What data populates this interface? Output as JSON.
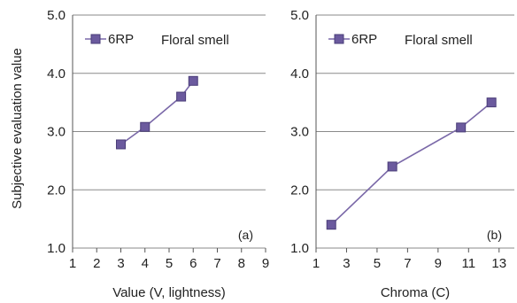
{
  "chart_data": [
    {
      "type": "line",
      "panel_label": "(a)",
      "ylabel": "Subjective evaluation value",
      "xlabel": "Value (V, lightness)",
      "xlim": [
        1,
        9
      ],
      "ylim": [
        1.0,
        5.0
      ],
      "x_ticks": [
        "1",
        "2",
        "3",
        "4",
        "5",
        "6",
        "7",
        "8",
        "9"
      ],
      "y_ticks": [
        "1.0",
        "2.0",
        "3.0",
        "4.0",
        "5.0"
      ],
      "grid": "horizontal",
      "legend_position": "top-left",
      "annotation": "Floral smell",
      "series": [
        {
          "name": "6RP",
          "marker": "square",
          "color": "#7a68a8",
          "x": [
            3,
            4,
            5.5,
            6
          ],
          "y": [
            2.78,
            3.08,
            3.6,
            3.87
          ]
        }
      ]
    },
    {
      "type": "line",
      "panel_label": "(b)",
      "ylabel": "",
      "xlabel": "Chroma (C)",
      "xlim": [
        1,
        14
      ],
      "ylim": [
        1.0,
        5.0
      ],
      "x_ticks": [
        "1",
        "3",
        "5",
        "7",
        "9",
        "11",
        "13"
      ],
      "y_ticks": [
        "1.0",
        "2.0",
        "3.0",
        "4.0",
        "5.0"
      ],
      "grid": "horizontal",
      "legend_position": "top-left",
      "annotation": "Floral smell",
      "series": [
        {
          "name": "6RP",
          "marker": "square",
          "color": "#7a68a8",
          "x": [
            2,
            6,
            10.5,
            12.5
          ],
          "y": [
            1.4,
            2.4,
            3.07,
            3.5
          ]
        }
      ]
    }
  ]
}
